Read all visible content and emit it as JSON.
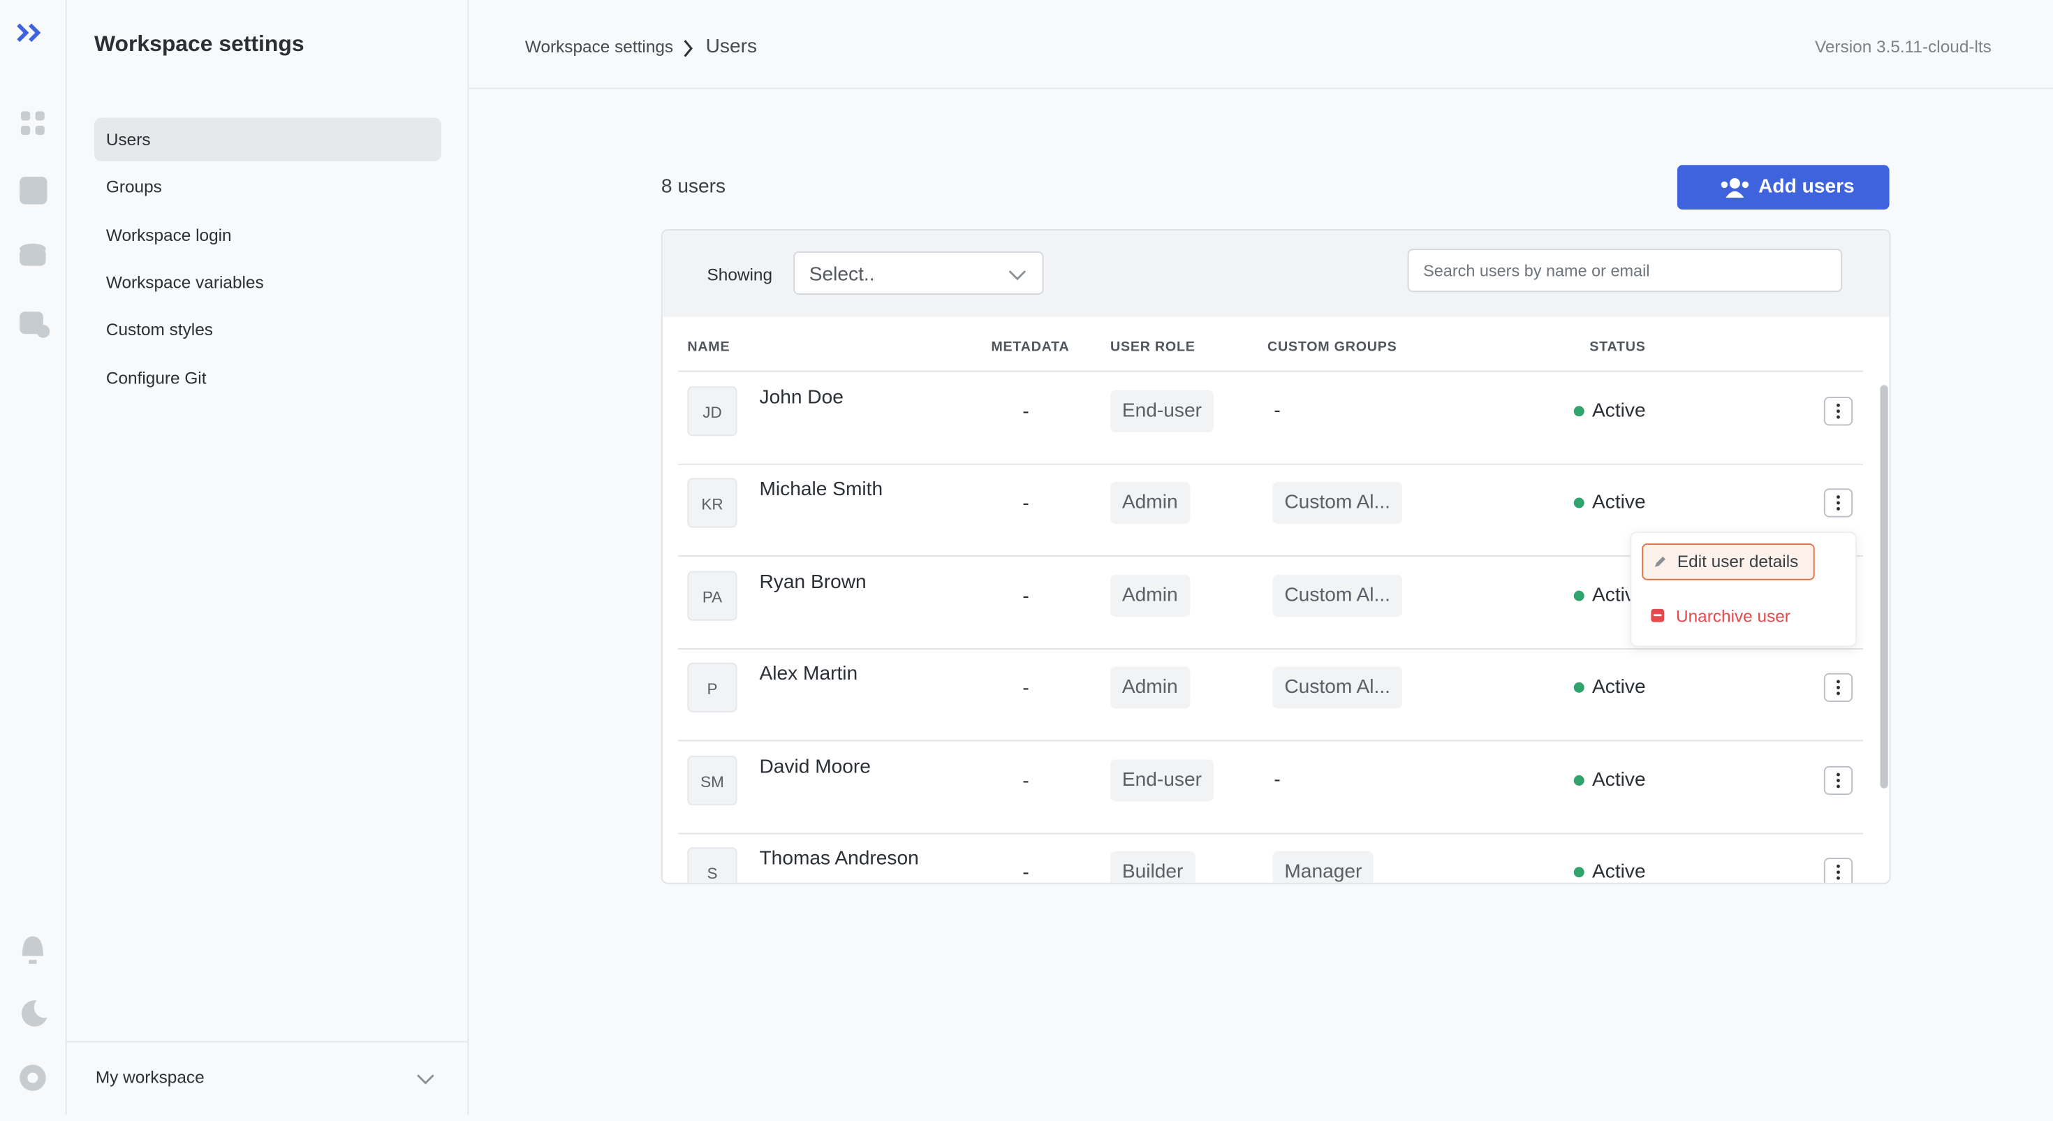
{
  "sidebar": {
    "title": "Workspace settings",
    "items": [
      "Users",
      "Groups",
      "Workspace login",
      "Workspace variables",
      "Custom styles",
      "Configure Git"
    ],
    "workspace": "My workspace"
  },
  "header": {
    "breadcrumb": [
      "Workspace settings",
      "Users"
    ],
    "version": "Version 3.5.11-cloud-lts"
  },
  "toolbar": {
    "count": "8 users",
    "add_button": "Add users"
  },
  "filter": {
    "label": "Showing",
    "select_placeholder": "Select..",
    "search_placeholder": "Search users by name or email"
  },
  "table": {
    "columns": [
      "NAME",
      "METADATA",
      "USER ROLE",
      "CUSTOM GROUPS",
      "STATUS"
    ],
    "rows": [
      {
        "initials": "JD",
        "name": "John Doe",
        "metadata": "-",
        "role": "End-user",
        "groups": "-",
        "status": "Active"
      },
      {
        "initials": "KR",
        "name": "Michale Smith",
        "metadata": "-",
        "role": "Admin",
        "groups": "Custom Al...",
        "status": "Active"
      },
      {
        "initials": "PA",
        "name": "Ryan Brown",
        "metadata": "-",
        "role": "Admin",
        "groups": "Custom Al...",
        "status": "Active"
      },
      {
        "initials": "P",
        "name": "Alex Martin",
        "metadata": "-",
        "role": "Admin",
        "groups": "Custom Al...",
        "status": "Active"
      },
      {
        "initials": "SM",
        "name": "David Moore",
        "metadata": "-",
        "role": "End-user",
        "groups": "-",
        "status": "Active"
      },
      {
        "initials": "S",
        "name": "Thomas Andreson",
        "metadata": "-",
        "role": "Builder",
        "groups": "Manager",
        "status": "Active"
      }
    ]
  },
  "menu": [
    "Edit user details",
    "Unarchive user"
  ]
}
